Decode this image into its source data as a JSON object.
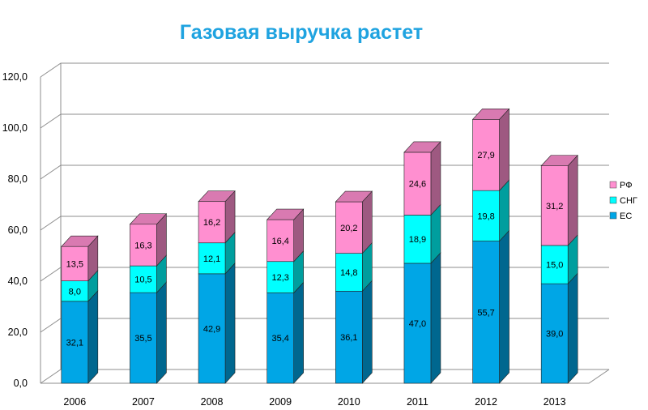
{
  "chart_data": {
    "type": "bar",
    "stacked": true,
    "three_d": true,
    "title": "Газовая выручка растет",
    "title_color": "#1fa3e0",
    "categories": [
      "2006",
      "2007",
      "2008",
      "2009",
      "2010",
      "2011",
      "2012",
      "2013"
    ],
    "series": [
      {
        "name": "ЕС",
        "color": "#00a6e6",
        "values": [
          32.1,
          35.5,
          42.9,
          35.4,
          36.1,
          47.0,
          55.7,
          39.0
        ],
        "labels": [
          "32,1",
          "35,5",
          "42,9",
          "35,4",
          "36,1",
          "47,0",
          "55,7",
          "39,0"
        ]
      },
      {
        "name": "СНГ",
        "color": "#00ffff",
        "values": [
          8.0,
          10.5,
          12.1,
          12.3,
          14.8,
          18.9,
          19.8,
          15.0
        ],
        "labels": [
          "8,0",
          "10,5",
          "12,1",
          "12,3",
          "14,8",
          "18,9",
          "19,8",
          "15,0"
        ]
      },
      {
        "name": "РФ",
        "color": "#ff8fd0",
        "values": [
          13.5,
          16.3,
          16.2,
          16.4,
          20.2,
          24.6,
          27.9,
          31.2
        ],
        "labels": [
          "13,5",
          "16,3",
          "16,2",
          "16,4",
          "20,2",
          "24,6",
          "27,9",
          "31,2"
        ]
      }
    ],
    "ylim": [
      0,
      120
    ],
    "yticks": [
      0,
      20,
      40,
      60,
      80,
      100,
      120
    ],
    "ytick_labels": [
      "0,0",
      "20,0",
      "40,0",
      "60,0",
      "80,0",
      "100,0",
      "120,0"
    ],
    "grid": true,
    "legend_position": "right"
  }
}
